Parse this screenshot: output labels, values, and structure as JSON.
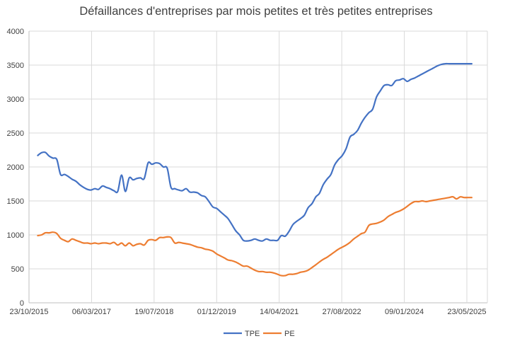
{
  "chart_data": {
    "type": "line",
    "title": "Défaillances d'entreprises par mois petites et très petites entreprises",
    "xlabel": "",
    "ylabel": "",
    "ylim": [
      0,
      4000
    ],
    "ytick_values": [
      0,
      500,
      1000,
      1500,
      2000,
      2500,
      3000,
      3500,
      4000
    ],
    "ytick_labels": [
      "0",
      "500",
      "1000",
      "1500",
      "2000",
      "2500",
      "3000",
      "3500",
      "4000"
    ],
    "xtick_labels": [
      "23/10/2015",
      "06/03/2017",
      "19/07/2018",
      "01/12/2019",
      "14/04/2021",
      "27/08/2022",
      "09/01/2024",
      "23/05/2025"
    ],
    "grid": true,
    "legend_position": "bottom",
    "colors": {
      "TPE": "#4472c4",
      "PE": "#ed7d31",
      "grid": "#d9d9d9",
      "axis": "#bfbfbf",
      "text": "#404040"
    },
    "x": [
      "2016-01",
      "2016-02",
      "2016-03",
      "2016-04",
      "2016-05",
      "2016-06",
      "2016-07",
      "2016-08",
      "2016-09",
      "2016-10",
      "2016-11",
      "2016-12",
      "2017-01",
      "2017-02",
      "2017-03",
      "2017-04",
      "2017-05",
      "2017-06",
      "2017-07",
      "2017-08",
      "2017-09",
      "2017-10",
      "2017-11",
      "2017-12",
      "2018-01",
      "2018-02",
      "2018-03",
      "2018-04",
      "2018-05",
      "2018-06",
      "2018-07",
      "2018-08",
      "2018-09",
      "2018-10",
      "2018-11",
      "2018-12",
      "2019-01",
      "2019-02",
      "2019-03",
      "2019-04",
      "2019-05",
      "2019-06",
      "2019-07",
      "2019-08",
      "2019-09",
      "2019-10",
      "2019-11",
      "2019-12",
      "2020-01",
      "2020-02",
      "2020-03",
      "2020-04",
      "2020-05",
      "2020-06",
      "2020-07",
      "2020-08",
      "2020-09",
      "2020-10",
      "2020-11",
      "2020-12",
      "2021-01",
      "2021-02",
      "2021-03",
      "2021-04",
      "2021-05",
      "2021-06",
      "2021-07",
      "2021-08",
      "2021-09",
      "2021-10",
      "2021-11",
      "2021-12",
      "2022-01",
      "2022-02",
      "2022-03",
      "2022-04",
      "2022-05",
      "2022-06",
      "2022-07",
      "2022-08",
      "2022-09",
      "2022-10",
      "2022-11",
      "2022-12",
      "2023-01",
      "2023-02",
      "2023-03",
      "2023-04",
      "2023-05",
      "2023-06",
      "2023-07",
      "2023-08",
      "2023-09",
      "2023-10",
      "2023-11",
      "2023-12",
      "2024-01",
      "2024-02",
      "2024-03",
      "2024-04",
      "2024-05",
      "2024-06",
      "2024-07",
      "2024-08",
      "2024-09",
      "2024-10",
      "2024-11",
      "2024-12",
      "2025-01",
      "2025-02",
      "2025-03",
      "2025-04",
      "2025-05",
      "2025-06",
      "2025-07"
    ],
    "series": [
      {
        "name": "TPE",
        "values": [
          2170,
          2210,
          2215,
          2160,
          2130,
          2110,
          1890,
          1890,
          1860,
          1820,
          1790,
          1740,
          1700,
          1670,
          1660,
          1680,
          1670,
          1720,
          1700,
          1680,
          1650,
          1640,
          1880,
          1640,
          1840,
          1810,
          1830,
          1840,
          1830,
          2060,
          2040,
          2060,
          2050,
          2000,
          1980,
          1700,
          1680,
          1660,
          1650,
          1680,
          1630,
          1630,
          1620,
          1580,
          1560,
          1490,
          1410,
          1390,
          1340,
          1290,
          1240,
          1150,
          1060,
          1000,
          920,
          910,
          920,
          940,
          920,
          910,
          940,
          920,
          920,
          920,
          990,
          980,
          1050,
          1150,
          1200,
          1240,
          1290,
          1400,
          1460,
          1560,
          1610,
          1740,
          1820,
          1890,
          2030,
          2110,
          2170,
          2270,
          2440,
          2480,
          2540,
          2650,
          2730,
          2800,
          2850,
          3030,
          3120,
          3200,
          3210,
          3200,
          3270,
          3280,
          3300,
          3260,
          3290,
          3310,
          3340,
          3370,
          3400,
          3430,
          3460,
          3490,
          3510,
          3520,
          3520,
          3520,
          3520,
          3520,
          3520,
          3520,
          3520
        ],
        "color": "#4472c4"
      },
      {
        "name": "PE",
        "values": [
          990,
          1000,
          1030,
          1030,
          1040,
          1020,
          950,
          920,
          900,
          940,
          920,
          900,
          880,
          880,
          870,
          880,
          870,
          880,
          880,
          870,
          890,
          850,
          880,
          840,
          880,
          840,
          860,
          870,
          850,
          920,
          930,
          920,
          960,
          960,
          970,
          960,
          880,
          890,
          880,
          870,
          860,
          840,
          820,
          810,
          790,
          780,
          760,
          720,
          690,
          660,
          630,
          620,
          600,
          570,
          540,
          540,
          510,
          480,
          460,
          460,
          450,
          450,
          440,
          420,
          400,
          400,
          420,
          420,
          430,
          450,
          460,
          480,
          520,
          560,
          600,
          640,
          670,
          710,
          750,
          790,
          820,
          850,
          890,
          940,
          980,
          1020,
          1040,
          1140,
          1160,
          1170,
          1190,
          1220,
          1270,
          1300,
          1330,
          1350,
          1380,
          1420,
          1460,
          1490,
          1490,
          1500,
          1490,
          1500,
          1510,
          1520,
          1530,
          1540,
          1550,
          1560,
          1530,
          1560,
          1550,
          1550,
          1550
        ],
        "color": "#ed7d31"
      }
    ]
  }
}
